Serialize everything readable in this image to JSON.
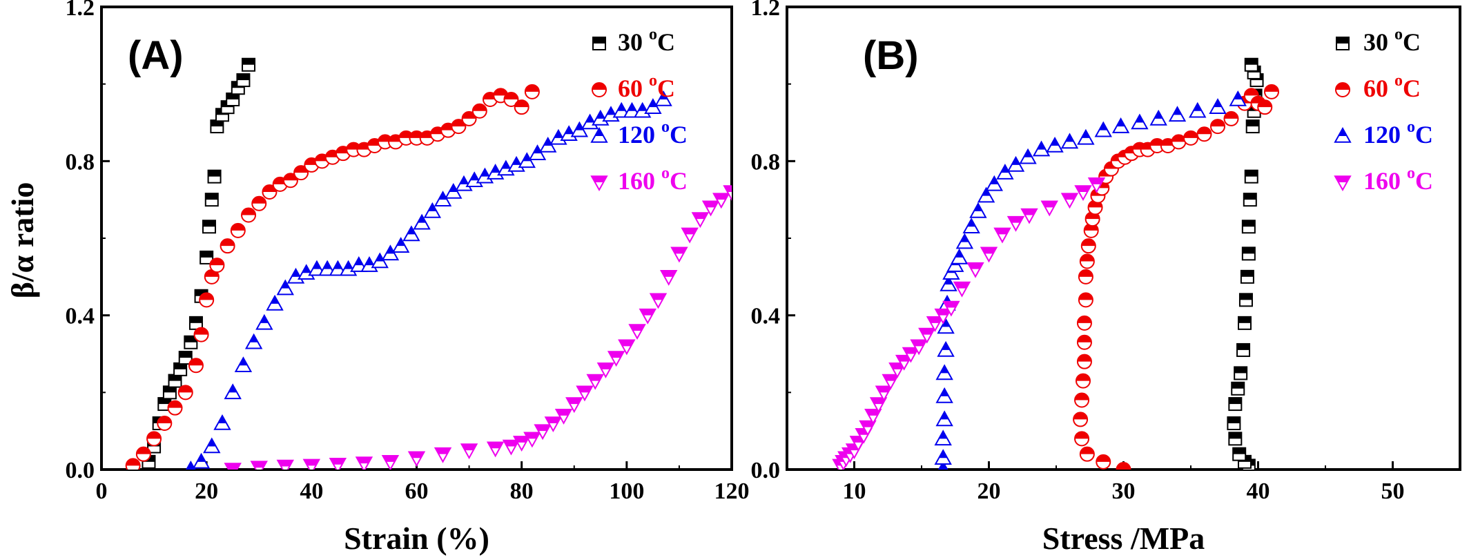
{
  "figure": {
    "y_axis_title": "β/α ratio"
  },
  "colors": {
    "s30": "#000000",
    "s60": "#ee0000",
    "s120": "#0000ee",
    "s160": "#ee00ee"
  },
  "chart_data": [
    {
      "type": "scatter",
      "panel_label": "(A)",
      "xlabel": "Strain (%)",
      "ylabel": "β/α ratio",
      "xlim": [
        0,
        120
      ],
      "ylim": [
        0,
        1.2
      ],
      "xticks": [
        "0",
        "20",
        "40",
        "60",
        "80",
        "100",
        "120"
      ],
      "yticks": [
        "0.0",
        "0.4",
        "0.8",
        "1.2"
      ],
      "legend_position": "top-right",
      "series": [
        {
          "name": "30 oC",
          "label": "30",
          "sup": "o",
          "unit": "C",
          "color": "#000000",
          "marker": "square-half",
          "x": [
            9,
            10,
            11,
            12,
            13,
            14,
            15,
            16,
            17,
            18,
            19,
            20,
            20.5,
            21,
            21.5,
            22,
            23,
            24,
            25,
            26,
            27,
            28
          ],
          "y": [
            0.02,
            0.06,
            0.12,
            0.17,
            0.2,
            0.23,
            0.26,
            0.29,
            0.33,
            0.38,
            0.45,
            0.55,
            0.63,
            0.7,
            0.76,
            0.89,
            0.92,
            0.94,
            0.96,
            0.99,
            1.01,
            1.05
          ]
        },
        {
          "name": "60 oC",
          "label": "60",
          "sup": "o",
          "unit": "C",
          "color": "#ee0000",
          "marker": "circle-half",
          "x": [
            6,
            8,
            10,
            12,
            14,
            16,
            18,
            19,
            20,
            21,
            22,
            24,
            26,
            28,
            30,
            32,
            34,
            36,
            38,
            40,
            42,
            44,
            46,
            48,
            50,
            52,
            54,
            56,
            58,
            60,
            62,
            64,
            66,
            68,
            70,
            72,
            74,
            76,
            78,
            80,
            82
          ],
          "y": [
            0.01,
            0.04,
            0.08,
            0.12,
            0.16,
            0.2,
            0.27,
            0.35,
            0.44,
            0.5,
            0.53,
            0.58,
            0.62,
            0.66,
            0.69,
            0.72,
            0.74,
            0.75,
            0.77,
            0.79,
            0.8,
            0.81,
            0.82,
            0.83,
            0.83,
            0.84,
            0.85,
            0.85,
            0.86,
            0.86,
            0.86,
            0.87,
            0.88,
            0.89,
            0.91,
            0.93,
            0.96,
            0.97,
            0.96,
            0.94,
            0.98
          ]
        },
        {
          "name": "120 oC",
          "label": "120",
          "sup": "o",
          "unit": "C",
          "color": "#0000ee",
          "marker": "triangle-up-half",
          "x": [
            17,
            19,
            21,
            23,
            25,
            27,
            29,
            31,
            33,
            35,
            37,
            39,
            41,
            43,
            45,
            47,
            49,
            51,
            53,
            55,
            57,
            59,
            61,
            63,
            65,
            67,
            69,
            71,
            73,
            75,
            77,
            79,
            81,
            83,
            85,
            87,
            89,
            91,
            93,
            95,
            97,
            99,
            101,
            103,
            105,
            107
          ],
          "y": [
            0.0,
            0.02,
            0.06,
            0.12,
            0.2,
            0.27,
            0.33,
            0.38,
            0.43,
            0.47,
            0.5,
            0.51,
            0.52,
            0.52,
            0.52,
            0.52,
            0.53,
            0.53,
            0.54,
            0.56,
            0.58,
            0.61,
            0.64,
            0.67,
            0.7,
            0.72,
            0.74,
            0.75,
            0.76,
            0.77,
            0.78,
            0.79,
            0.8,
            0.82,
            0.84,
            0.86,
            0.87,
            0.88,
            0.9,
            0.91,
            0.92,
            0.93,
            0.93,
            0.93,
            0.94,
            0.96
          ]
        },
        {
          "name": "160 oC",
          "label": "160",
          "sup": "o",
          "unit": "C",
          "color": "#ee00ee",
          "marker": "triangle-down-half",
          "x": [
            25,
            30,
            35,
            40,
            45,
            50,
            55,
            60,
            65,
            70,
            75,
            78,
            80,
            82,
            84,
            86,
            88,
            90,
            92,
            94,
            96,
            98,
            100,
            102,
            104,
            106,
            108,
            110,
            112,
            114,
            116,
            118,
            120
          ],
          "y": [
            0.0,
            0.005,
            0.008,
            0.01,
            0.013,
            0.016,
            0.02,
            0.03,
            0.04,
            0.05,
            0.055,
            0.06,
            0.07,
            0.08,
            0.1,
            0.12,
            0.14,
            0.17,
            0.2,
            0.23,
            0.26,
            0.29,
            0.32,
            0.36,
            0.4,
            0.44,
            0.5,
            0.56,
            0.61,
            0.65,
            0.68,
            0.7,
            0.72
          ]
        }
      ]
    },
    {
      "type": "scatter",
      "panel_label": "(B)",
      "xlabel": "Stress /MPa",
      "ylabel": "",
      "xlim": [
        5,
        55
      ],
      "ylim": [
        0,
        1.2
      ],
      "xticks": [
        "10",
        "20",
        "30",
        "40",
        "50"
      ],
      "yticks": [
        "0.0",
        "0.4",
        "0.8",
        "1.2"
      ],
      "legend_position": "top-right",
      "series": [
        {
          "name": "30 oC",
          "label": "30",
          "sup": "o",
          "unit": "C",
          "color": "#000000",
          "marker": "square-half",
          "x": [
            39.3,
            39.0,
            38.6,
            38.3,
            38.2,
            38.3,
            38.5,
            38.7,
            38.9,
            39.0,
            39.1,
            39.2,
            39.3,
            39.3,
            39.4,
            39.5,
            39.6,
            39.7,
            39.8,
            39.9,
            39.7,
            39.5
          ],
          "y": [
            0.01,
            0.02,
            0.04,
            0.08,
            0.12,
            0.17,
            0.21,
            0.25,
            0.31,
            0.38,
            0.44,
            0.5,
            0.56,
            0.63,
            0.7,
            0.76,
            0.89,
            0.93,
            0.97,
            1.01,
            1.03,
            1.05
          ]
        },
        {
          "name": "60 oC",
          "label": "60",
          "sup": "o",
          "unit": "C",
          "color": "#ee0000",
          "marker": "circle-half",
          "x": [
            30.0,
            28.5,
            27.3,
            26.9,
            26.8,
            26.9,
            27.0,
            27.1,
            27.1,
            27.1,
            27.2,
            27.2,
            27.3,
            27.4,
            27.6,
            27.7,
            27.9,
            28.1,
            28.4,
            28.7,
            29.1,
            29.6,
            30.1,
            30.6,
            31.2,
            31.8,
            32.5,
            33.3,
            34.1,
            35.0,
            36.0,
            37.0,
            38.0,
            39.0,
            39.5,
            40.0,
            40.5,
            41.0
          ],
          "y": [
            0.0,
            0.02,
            0.04,
            0.08,
            0.13,
            0.18,
            0.23,
            0.28,
            0.33,
            0.38,
            0.44,
            0.5,
            0.54,
            0.58,
            0.62,
            0.65,
            0.68,
            0.71,
            0.73,
            0.76,
            0.78,
            0.8,
            0.81,
            0.82,
            0.83,
            0.83,
            0.84,
            0.84,
            0.85,
            0.86,
            0.87,
            0.89,
            0.91,
            0.95,
            0.97,
            0.95,
            0.94,
            0.98
          ]
        },
        {
          "name": "120 oC",
          "label": "120",
          "sup": "o",
          "unit": "C",
          "color": "#0000ee",
          "marker": "triangle-up-half",
          "x": [
            16.6,
            16.6,
            16.6,
            16.7,
            16.7,
            16.7,
            16.8,
            16.8,
            16.9,
            17.0,
            17.2,
            17.5,
            17.8,
            18.2,
            18.7,
            19.2,
            19.8,
            20.4,
            21.2,
            22.0,
            22.9,
            23.9,
            24.9,
            26.0,
            27.2,
            28.5,
            29.8,
            31.2,
            32.6,
            34.0,
            35.5,
            37.0,
            38.5
          ],
          "y": [
            0.0,
            0.03,
            0.08,
            0.13,
            0.19,
            0.25,
            0.31,
            0.37,
            0.43,
            0.48,
            0.51,
            0.53,
            0.55,
            0.59,
            0.63,
            0.67,
            0.71,
            0.74,
            0.77,
            0.79,
            0.81,
            0.83,
            0.84,
            0.85,
            0.86,
            0.88,
            0.89,
            0.9,
            0.91,
            0.92,
            0.93,
            0.94,
            0.96
          ]
        },
        {
          "name": "160 oC",
          "label": "160",
          "sup": "o",
          "unit": "C",
          "color": "#ee00ee",
          "marker": "triangle-down-half",
          "x": [
            9.0,
            9.2,
            9.4,
            9.7,
            10.0,
            10.3,
            10.7,
            11.0,
            11.4,
            11.8,
            12.2,
            12.7,
            13.2,
            13.7,
            14.2,
            14.8,
            15.4,
            16.0,
            16.6,
            17.2,
            18.0,
            19.0,
            20.0,
            21.0,
            22.0,
            23.0,
            24.5,
            26.0,
            27.0,
            28.0
          ],
          "y": [
            0.01,
            0.02,
            0.03,
            0.04,
            0.05,
            0.07,
            0.09,
            0.11,
            0.14,
            0.17,
            0.2,
            0.23,
            0.26,
            0.28,
            0.3,
            0.32,
            0.35,
            0.38,
            0.4,
            0.42,
            0.47,
            0.52,
            0.56,
            0.61,
            0.64,
            0.66,
            0.68,
            0.7,
            0.72,
            0.74
          ]
        }
      ]
    }
  ]
}
